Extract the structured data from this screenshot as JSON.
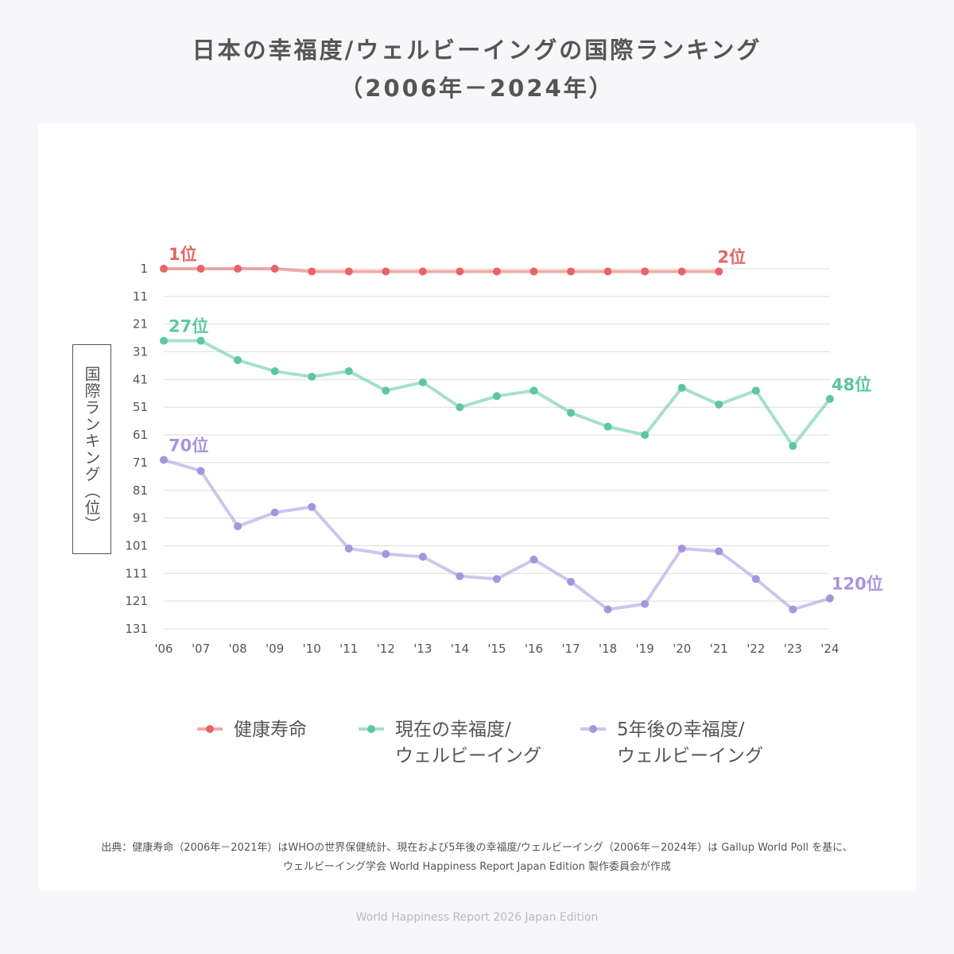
{
  "title_line1": "日本の幸福度/ウェルビーイングの国際ランキング",
  "title_line2": "（2006年－2024年）",
  "y_axis_label": "国際ランキング（位）",
  "source_line1": "出典：健康寿命（2006年－2021年）はWHOの世界保健統計、現在および5年後の幸福度/ウェルビーイング（2006年－2024年）は Gallup World Poll を基に、",
  "source_line2": "ウェルビーイング学会 World Happiness Report Japan Edition 製作委員会が作成",
  "footer": "World Happiness Report 2026 Japan Edition",
  "legend": [
    {
      "label": "健康寿命",
      "label2": "",
      "color": "#e86464"
    },
    {
      "label": "現在の幸福度/",
      "label2": "ウェルビーイング",
      "color": "#5cc7a0"
    },
    {
      "label": "5年後の幸福度/",
      "label2": "ウェルビーイング",
      "color": "#a895dc"
    }
  ],
  "chart_data": {
    "type": "line",
    "x": [
      "'06",
      "'07",
      "'08",
      "'09",
      "'10",
      "'11",
      "'12",
      "'13",
      "'14",
      "'15",
      "'16",
      "'17",
      "'18",
      "'19",
      "'20",
      "'21",
      "'22",
      "'23",
      "'24"
    ],
    "y_ticks": [
      1,
      11,
      21,
      31,
      41,
      51,
      61,
      71,
      81,
      91,
      101,
      111,
      121,
      131
    ],
    "ylim": [
      1,
      131
    ],
    "y_inverted": true,
    "ylabel": "国際ランキング（位）",
    "grid": true,
    "series": [
      {
        "name": "健康寿命",
        "color": "#e86464",
        "values": [
          1,
          1,
          1,
          1,
          2,
          2,
          2,
          2,
          2,
          2,
          2,
          2,
          2,
          2,
          2,
          2,
          null,
          null,
          null
        ],
        "labels": [
          {
            "index": 0,
            "text": "1位"
          },
          {
            "index": 15,
            "text": "2位"
          }
        ]
      },
      {
        "name": "現在の幸福度/ウェルビーイング",
        "color": "#5cc7a0",
        "values": [
          27,
          27,
          34,
          38,
          40,
          38,
          45,
          42,
          51,
          47,
          45,
          53,
          58,
          61,
          44,
          50,
          45,
          65,
          48
        ],
        "labels": [
          {
            "index": 0,
            "text": "27位"
          },
          {
            "index": 18,
            "text": "48位"
          }
        ]
      },
      {
        "name": "5年後の幸福度/ウェルビーイング",
        "color": "#a895dc",
        "values": [
          70,
          74,
          94,
          89,
          87,
          102,
          104,
          105,
          112,
          113,
          106,
          114,
          124,
          122,
          102,
          103,
          113,
          124,
          120
        ],
        "labels": [
          {
            "index": 0,
            "text": "70位"
          },
          {
            "index": 18,
            "text": "120位"
          }
        ]
      }
    ]
  }
}
